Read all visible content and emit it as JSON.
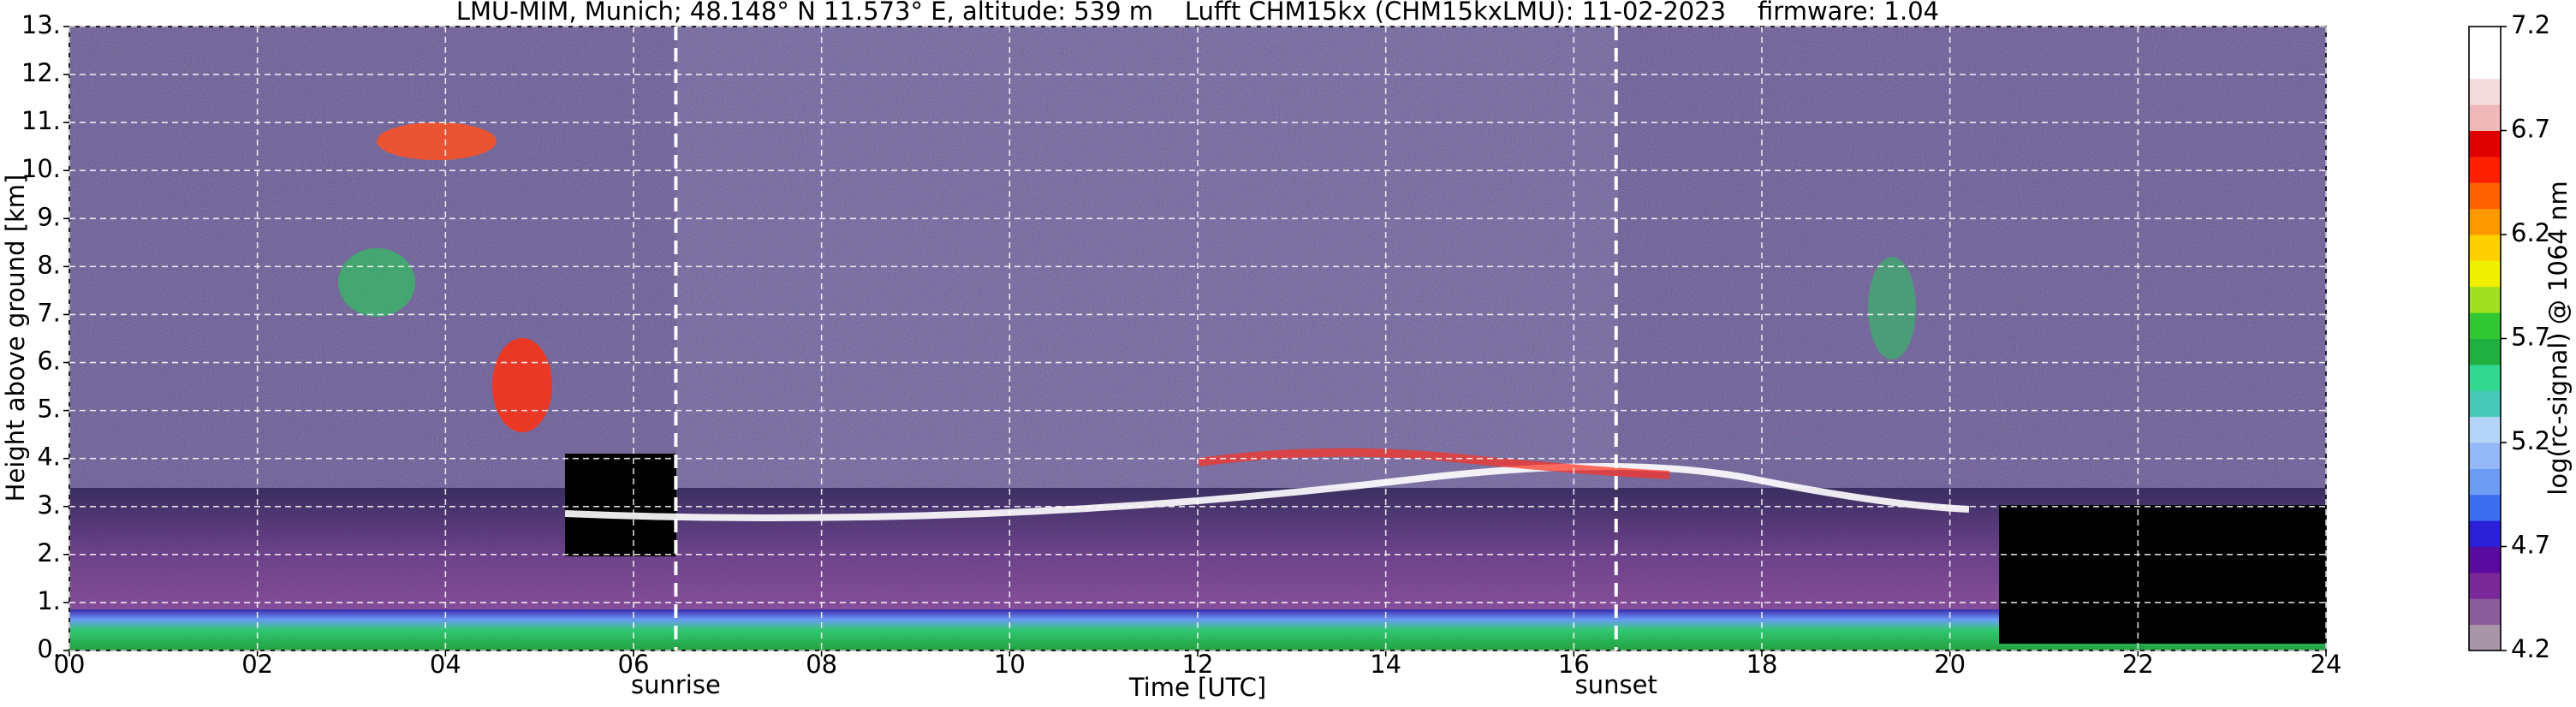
{
  "chart_data": {
    "type": "heatmap",
    "title": "LMU-MIM, Munich; 48.148° N 11.573° E, altitude: 539 m    Lufft CHM15kx (CHM15kxLMU): 11-02-2023    firmware: 1.04",
    "xlabel": "Time [UTC]",
    "ylabel": "Height above ground [km]",
    "xlim": [
      0,
      24
    ],
    "ylim": [
      0,
      13
    ],
    "xticks": [
      {
        "value": 0,
        "label": "00"
      },
      {
        "value": 2,
        "label": "02"
      },
      {
        "value": 4,
        "label": "04"
      },
      {
        "value": 6,
        "label": "06"
      },
      {
        "value": 8,
        "label": "08"
      },
      10,
      12,
      14,
      16,
      18,
      20,
      22,
      24
    ],
    "yticks": [
      {
        "value": 0,
        "label": "0."
      },
      {
        "value": 1,
        "label": "1."
      },
      {
        "value": 2,
        "label": "2."
      },
      {
        "value": 3,
        "label": "3."
      },
      {
        "value": 4,
        "label": "4."
      },
      {
        "value": 5,
        "label": "5."
      },
      {
        "value": 6,
        "label": "6."
      },
      {
        "value": 7,
        "label": "7."
      },
      {
        "value": 8,
        "label": "8."
      },
      {
        "value": 9,
        "label": "9."
      },
      {
        "value": 10,
        "label": "10."
      },
      {
        "value": 11,
        "label": "11."
      },
      {
        "value": 12,
        "label": "12."
      },
      {
        "value": 13,
        "label": "13."
      }
    ],
    "grid": true,
    "annotations": [
      {
        "x": 6.45,
        "label": "sunrise"
      },
      {
        "x": 16.45,
        "label": "sunset"
      }
    ],
    "colorbar": {
      "label": "log(rc-signal) @ 1064 nm",
      "ylim": [
        4.2,
        7.2
      ],
      "yticks": [
        4.2,
        4.7,
        5.2,
        5.7,
        6.2,
        6.7,
        7.2
      ],
      "colors": [
        "#a896a8",
        "#8a5c9c",
        "#7a2a98",
        "#5a0aa0",
        "#2a20d8",
        "#3c6cf0",
        "#6c9cf4",
        "#94b8f8",
        "#b4d4fa",
        "#48c8b8",
        "#30d890",
        "#20b040",
        "#30c830",
        "#a0e020",
        "#f0f000",
        "#ffd000",
        "#ff9800",
        "#ff6000",
        "#ff2000",
        "#e00000",
        "#f0b8b8",
        "#f4dcdc",
        "#ffffff",
        "#ffffff"
      ]
    }
  }
}
